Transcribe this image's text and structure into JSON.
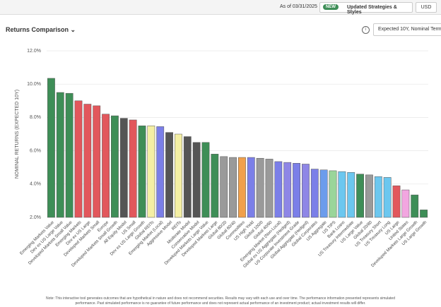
{
  "header": {
    "as_of": "As of 03/31/2025",
    "badge": "NEW",
    "updates": "Updated Strategies & Styles",
    "currency": "USD"
  },
  "panel": {
    "title": "Returns Comparison",
    "selector": "Expected 10Y, Nominal Terms"
  },
  "footer": {
    "line1": "Note: This interactive tool generates outcomes that are hypothetical in nature and does not recommend securities. Results may vary with each use and over time. The performance information presented represents simulated",
    "line2": "performance. Past simulated performance is no guarantee of future performance and does not represent actual performance of an investment product; actual investment results will differ."
  },
  "chart_data": {
    "type": "bar",
    "y_label": "NOMINAL RETURNS (EXPECTED 10Y)",
    "categories": [
      "Emerging Markets Value",
      "Dev ex US Large Value",
      "Developed Markets Small Value",
      "Emerging Markets",
      "Dev ex US Large",
      "Developed Markets Small",
      "Europe",
      "Developed Markets Small Growth",
      "All Equity Model",
      "US Small",
      "Dev ex US Large Growth",
      "Global REITs",
      "Emerging Market (Local)",
      "Aggressive Model",
      "REITs",
      "Moderate Model",
      "Conservative Model",
      "Developed Markets Large Value",
      "Developed Markets Large",
      "Global 80/20",
      "Global 60/40",
      "Commodities",
      "US High Yield",
      "Global 100/0",
      "Global 40/60",
      "Emerging Market (Non-Local)",
      "Global ex US Aggregate (Hedged)",
      "US Corporate Investment Grade",
      "Global Aggregate (Hedged)",
      "Global Corporates",
      "US Aggregate",
      "US TIPS",
      "Bank Loans",
      "US Treasury Intermediate",
      "US Large Value",
      "Global 20/80",
      "US Treasury Short",
      "US Treasury Long",
      "US Large",
      "United States",
      "Developed Markets Large Growth",
      "US Large Growth"
    ],
    "values": [
      10.35,
      9.5,
      9.45,
      9.0,
      8.8,
      8.7,
      8.2,
      8.1,
      7.95,
      7.85,
      7.5,
      7.5,
      7.45,
      7.1,
      7.0,
      6.85,
      6.5,
      6.5,
      5.8,
      5.65,
      5.6,
      5.6,
      5.6,
      5.55,
      5.5,
      5.35,
      5.3,
      5.25,
      5.2,
      4.9,
      4.85,
      4.8,
      4.75,
      4.7,
      4.6,
      4.55,
      4.45,
      4.4,
      3.9,
      3.65,
      3.35,
      2.45
    ],
    "colors": [
      "#3e8e57",
      "#3e8e57",
      "#3e8e57",
      "#e2575c",
      "#e2575c",
      "#e2575c",
      "#e2575c",
      "#3e8e57",
      "#555555",
      "#e2575c",
      "#3e8e57",
      "#f4efa4",
      "#7b7fe8",
      "#555555",
      "#f4efa4",
      "#555555",
      "#555555",
      "#3e8e57",
      "#3e8e57",
      "#9a9a9a",
      "#9a9a9a",
      "#f0a04b",
      "#7b7fe8",
      "#9a9a9a",
      "#9a9a9a",
      "#7b7fe8",
      "#8e86e6",
      "#7b7fe8",
      "#8e86e6",
      "#7b7fe8",
      "#6c9cec",
      "#9ad59a",
      "#6cc7ef",
      "#6cc7ef",
      "#3e8e57",
      "#9a9a9a",
      "#6cc7ef",
      "#6cc7ef",
      "#e2575c",
      "#f2a6e0",
      "#3e8e57",
      "#3e8e57"
    ],
    "ylim": [
      2,
      12
    ],
    "yticks": [
      {
        "value": 2,
        "label": "2.0%"
      },
      {
        "value": 4,
        "label": "4.0%"
      },
      {
        "value": 6,
        "label": "6.0%"
      },
      {
        "value": 8,
        "label": "8.0%"
      },
      {
        "value": 10,
        "label": "10.0%"
      },
      {
        "value": 12,
        "label": "12.0%"
      }
    ],
    "grid": true
  }
}
